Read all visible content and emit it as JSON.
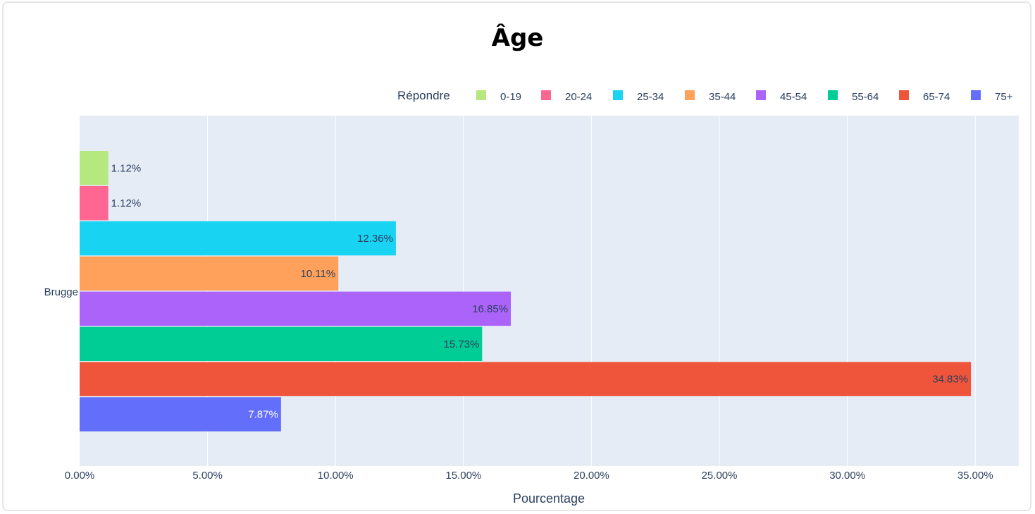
{
  "chart_data": {
    "type": "bar",
    "orientation": "horizontal",
    "title": "Âge",
    "xlabel": "Pourcentage",
    "ylabel": "",
    "category": "Brugge",
    "xlim": [
      0,
      36.7
    ],
    "xticks": [
      0,
      5,
      10,
      15,
      20,
      25,
      30,
      35
    ],
    "xtick_labels": [
      "0.00%",
      "5.00%",
      "10.00%",
      "15.00%",
      "20.00%",
      "25.00%",
      "30.00%",
      "35.00%"
    ],
    "grid": true,
    "legend": {
      "title": "Répondre",
      "placement": "top-right",
      "orientation": "horizontal"
    },
    "series": [
      {
        "name": "0-19",
        "value": 1.12,
        "label": "1.12%",
        "color": "#b6e880"
      },
      {
        "name": "20-24",
        "value": 1.12,
        "label": "1.12%",
        "color": "#ff6692"
      },
      {
        "name": "25-34",
        "value": 12.36,
        "label": "12.36%",
        "color": "#19d3f3"
      },
      {
        "name": "35-44",
        "value": 10.11,
        "label": "10.11%",
        "color": "#ffa15a"
      },
      {
        "name": "45-54",
        "value": 16.85,
        "label": "16.85%",
        "color": "#ab63fa"
      },
      {
        "name": "55-64",
        "value": 15.73,
        "label": "15.73%",
        "color": "#00cc96"
      },
      {
        "name": "65-74",
        "value": 34.83,
        "label": "34.83%",
        "color": "#ef553b"
      },
      {
        "name": "75+",
        "value": 7.87,
        "label": "7.87%",
        "color": "#636efa"
      }
    ],
    "colors": {
      "plot_bg": "#e5ecf6",
      "grid": "#ffffff",
      "text": "#2a3f5f"
    }
  }
}
